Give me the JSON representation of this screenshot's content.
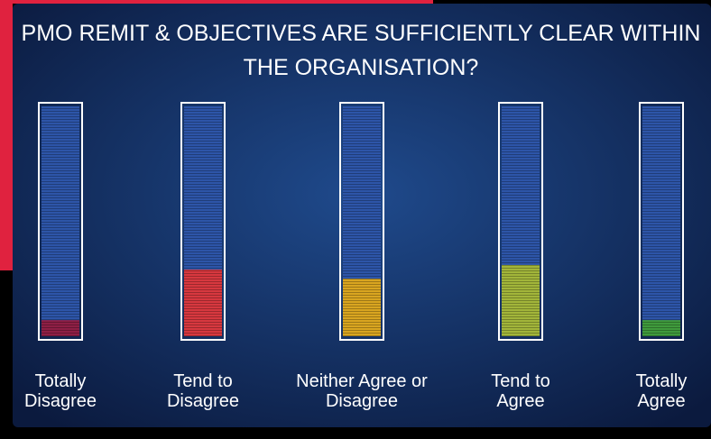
{
  "chart_data": {
    "type": "bar",
    "title": "PMO REMIT & OBJECTIVES ARE SUFFICIENTLY CLEAR WITHIN THE ORGANISATION?",
    "categories": [
      "Totally Disagree",
      "Tend to Disagree",
      "Neither Agree or Disagree",
      "Tend to Agree",
      "Totally Agree"
    ],
    "values": [
      7,
      29,
      25,
      31,
      7
    ],
    "colors": [
      "#8e1f45",
      "#d7383f",
      "#d9a520",
      "#a2b53a",
      "#3f9a3c"
    ],
    "ylim": [
      0,
      100
    ]
  }
}
